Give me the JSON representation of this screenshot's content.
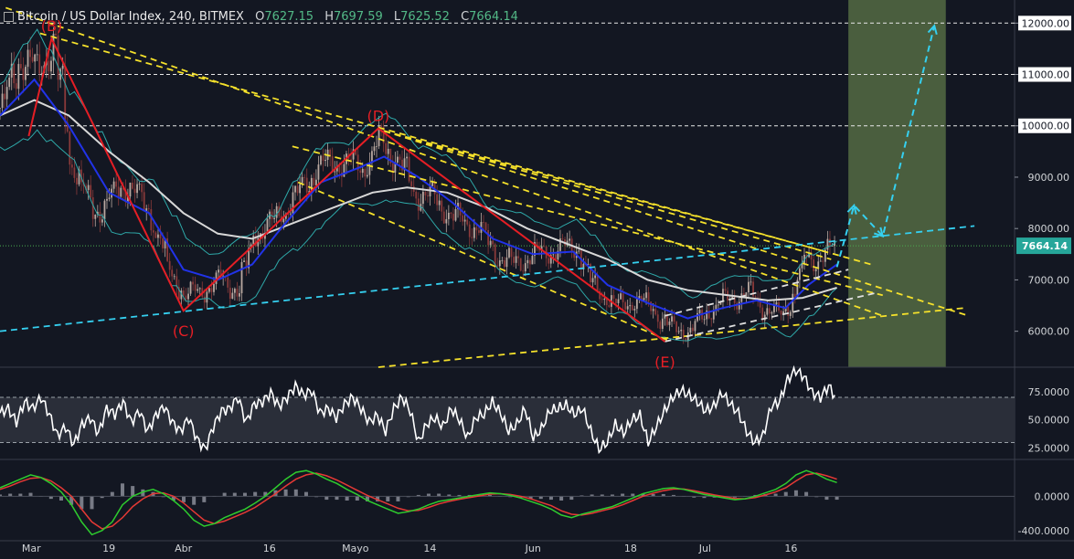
{
  "header": {
    "symbol": "Bitcoin / US Dollar Index",
    "interval": "240",
    "exchange": "BITMEX",
    "open_label": "O",
    "open": "7627.15",
    "high_label": "H",
    "high": "7697.59",
    "low_label": "L",
    "low": "7625.52",
    "close_label": "C",
    "close": "7664.14"
  },
  "colors": {
    "background": "#131722",
    "price_line": "#4caf50",
    "zigzag": "#e51e25",
    "ema_fast": "#2133e8",
    "sma_slow": "#d8d8d8",
    "bands": "#2ea8a8",
    "trend_yellow": "#f5e12b",
    "trend_cyan": "#35d0f0",
    "trend_white": "#e0e0e0",
    "green_zone": "#4a5e3e",
    "rsi_line": "#ffffff",
    "macd_line": "#2ecc2e",
    "signal_line": "#e53935",
    "histogram": "#787b86"
  },
  "chart_data": [
    {
      "type": "candlestick",
      "pane": "price",
      "ylim": [
        5300,
        12450
      ],
      "yticks": [
        6000,
        7000,
        8000,
        9000,
        10000,
        11000,
        12000
      ],
      "ytick_labels": [
        "6000.00",
        "7000.00",
        "8000.00",
        "9000.00",
        "10000.00",
        "11000.00",
        "12000.00"
      ],
      "last_price": 7664.14,
      "last_price_label": "7664.14",
      "x_labels": [
        "Mar",
        "19",
        "Abr",
        "16",
        "Mayo",
        "14",
        "Jun",
        "18",
        "Jul",
        "16"
      ],
      "wave_labels": [
        {
          "label": "(B)",
          "value": 11700
        },
        {
          "label": "(C)",
          "value": 6400
        },
        {
          "label": "(D)",
          "value": 9950
        },
        {
          "label": "(E)",
          "value": 5800
        }
      ],
      "zigzag": [
        {
          "date": "2018-03-05",
          "value": 9800
        },
        {
          "date": "2018-03-09",
          "value": 11700
        },
        {
          "date": "2018-04-01",
          "value": 6400
        },
        {
          "date": "2018-05-05",
          "value": 9950
        },
        {
          "date": "2018-06-24",
          "value": 5800
        }
      ],
      "close_path": [
        [
          "2018-02-28",
          10350
        ],
        [
          "2018-03-03",
          11300
        ],
        [
          "2018-03-06",
          11100
        ],
        [
          "2018-03-09",
          11600
        ],
        [
          "2018-03-12",
          9300
        ],
        [
          "2018-03-16",
          8300
        ],
        [
          "2018-03-19",
          8600
        ],
        [
          "2018-03-22",
          8900
        ],
        [
          "2018-03-26",
          8200
        ],
        [
          "2018-03-29",
          7200
        ],
        [
          "2018-04-01",
          6700
        ],
        [
          "2018-04-04",
          6800
        ],
        [
          "2018-04-07",
          7000
        ],
        [
          "2018-04-10",
          6800
        ],
        [
          "2018-04-13",
          7900
        ],
        [
          "2018-04-16",
          8100
        ],
        [
          "2018-04-20",
          8600
        ],
        [
          "2018-04-24",
          9200
        ],
        [
          "2018-04-28",
          9300
        ],
        [
          "2018-05-02",
          9200
        ],
        [
          "2018-05-05",
          9700
        ],
        [
          "2018-05-08",
          9300
        ],
        [
          "2018-05-11",
          8700
        ],
        [
          "2018-05-14",
          8600
        ],
        [
          "2018-05-18",
          8200
        ],
        [
          "2018-05-22",
          8000
        ],
        [
          "2018-05-25",
          7500
        ],
        [
          "2018-05-28",
          7300
        ],
        [
          "2018-06-01",
          7500
        ],
        [
          "2018-06-05",
          7600
        ],
        [
          "2018-06-08",
          7650
        ],
        [
          "2018-06-11",
          6900
        ],
        [
          "2018-06-15",
          6500
        ],
        [
          "2018-06-18",
          6600
        ],
        [
          "2018-06-21",
          6500
        ],
        [
          "2018-06-24",
          6100
        ],
        [
          "2018-06-28",
          6000
        ],
        [
          "2018-07-01",
          6400
        ],
        [
          "2018-07-04",
          6600
        ],
        [
          "2018-07-08",
          6750
        ],
        [
          "2018-07-11",
          6450
        ],
        [
          "2018-07-14",
          6300
        ],
        [
          "2018-07-16",
          6750
        ],
        [
          "2018-07-18",
          7400
        ],
        [
          "2018-07-20",
          7400
        ],
        [
          "2018-07-22",
          7550
        ],
        [
          "2018-07-24",
          7664
        ]
      ],
      "ema_fast": [
        [
          "2018-02-28",
          10200
        ],
        [
          "2018-03-06",
          10900
        ],
        [
          "2018-03-12",
          10000
        ],
        [
          "2018-03-19",
          8700
        ],
        [
          "2018-03-26",
          8300
        ],
        [
          "2018-04-01",
          7200
        ],
        [
          "2018-04-07",
          7000
        ],
        [
          "2018-04-13",
          7300
        ],
        [
          "2018-04-18",
          8000
        ],
        [
          "2018-04-25",
          8900
        ],
        [
          "2018-05-02",
          9200
        ],
        [
          "2018-05-06",
          9400
        ],
        [
          "2018-05-12",
          9000
        ],
        [
          "2018-05-18",
          8500
        ],
        [
          "2018-05-25",
          7800
        ],
        [
          "2018-06-01",
          7500
        ],
        [
          "2018-06-08",
          7550
        ],
        [
          "2018-06-14",
          6900
        ],
        [
          "2018-06-21",
          6550
        ],
        [
          "2018-06-28",
          6250
        ],
        [
          "2018-07-04",
          6450
        ],
        [
          "2018-07-10",
          6600
        ],
        [
          "2018-07-15",
          6450
        ],
        [
          "2018-07-19",
          6900
        ],
        [
          "2018-07-24",
          7300
        ]
      ],
      "sma_slow": [
        [
          "2018-02-28",
          10200
        ],
        [
          "2018-03-06",
          10500
        ],
        [
          "2018-03-12",
          10200
        ],
        [
          "2018-03-19",
          9500
        ],
        [
          "2018-03-26",
          8900
        ],
        [
          "2018-04-01",
          8300
        ],
        [
          "2018-04-07",
          7900
        ],
        [
          "2018-04-13",
          7800
        ],
        [
          "2018-04-20",
          8100
        ],
        [
          "2018-04-27",
          8400
        ],
        [
          "2018-05-04",
          8700
        ],
        [
          "2018-05-10",
          8800
        ],
        [
          "2018-05-17",
          8700
        ],
        [
          "2018-05-24",
          8400
        ],
        [
          "2018-05-31",
          8000
        ],
        [
          "2018-06-07",
          7700
        ],
        [
          "2018-06-14",
          7400
        ],
        [
          "2018-06-21",
          7000
        ],
        [
          "2018-06-28",
          6800
        ],
        [
          "2018-07-05",
          6700
        ],
        [
          "2018-07-12",
          6600
        ],
        [
          "2018-07-18",
          6650
        ],
        [
          "2018-07-24",
          6850
        ]
      ],
      "trendlines": [
        {
          "color": "yellow",
          "from": [
            "2018-03-07",
            11800
          ],
          "to": [
            "2018-07-30",
            7300
          ]
        },
        {
          "color": "yellow",
          "from": [
            "2018-03-01",
            12300
          ],
          "to": [
            "2018-08-01",
            6300
          ]
        },
        {
          "color": "yellow",
          "from": [
            "2018-04-20",
            9600
          ],
          "to": [
            "2018-08-01",
            6700
          ]
        },
        {
          "color": "yellow",
          "from": [
            "2018-05-06",
            9900
          ],
          "to": [
            "2018-07-23",
            7400
          ]
        },
        {
          "color": "yellow",
          "from": [
            "2018-05-06",
            9900
          ],
          "to": [
            "2018-08-16",
            6300
          ]
        },
        {
          "color": "yellow",
          "from": [
            "2018-05-06",
            9900
          ],
          "to": [
            "2018-07-22",
            7550
          ]
        },
        {
          "color": "yellow",
          "from": [
            "2018-04-21",
            8900
          ],
          "to": [
            "2018-06-25",
            5800
          ]
        },
        {
          "color": "yellow",
          "from": [
            "2018-05-05",
            5300
          ],
          "to": [
            "2018-08-15",
            6450
          ]
        },
        {
          "color": "cyan",
          "from": [
            "2018-02-28",
            6000
          ],
          "to": [
            "2018-08-17",
            8050
          ]
        },
        {
          "color": "white",
          "from": [
            "2018-06-24",
            5800
          ],
          "to": [
            "2018-07-31",
            6750
          ]
        },
        {
          "color": "white",
          "from": [
            "2018-06-24",
            6300
          ],
          "to": [
            "2018-07-26",
            7200
          ]
        }
      ],
      "projection": [
        [
          "2018-07-24",
          7250
        ],
        [
          "2018-07-27",
          8450
        ],
        [
          "2018-08-01",
          7850
        ],
        [
          "2018-08-10",
          11950
        ]
      ],
      "green_zone": {
        "from_date": "2018-07-26",
        "to_date": "2018-08-12"
      }
    },
    {
      "type": "line",
      "pane": "rsi",
      "ylim": [
        15,
        95
      ],
      "yticks": [
        25,
        50,
        75
      ],
      "ytick_labels": [
        "25.0000",
        "50.0000",
        "75.0000"
      ],
      "levels": [
        70,
        30
      ],
      "series": [
        {
          "values": [
            56,
            60,
            48,
            66,
            60,
            70,
            55,
            36,
            44,
            28,
            46,
            52,
            38,
            60,
            55,
            66,
            48,
            58,
            40,
            54,
            62,
            48,
            40,
            52,
            33,
            24,
            44,
            58,
            60,
            70,
            48,
            64,
            66,
            74,
            62,
            70,
            80,
            72,
            76,
            56,
            60,
            52,
            64,
            70,
            60,
            48,
            54,
            40,
            60,
            70,
            58,
            30,
            46,
            52,
            44,
            60,
            50,
            34,
            52,
            55,
            66,
            56,
            40,
            46,
            60,
            34,
            42,
            58,
            60,
            63,
            55,
            60,
            40,
            24,
            30,
            46,
            38,
            50,
            54,
            30,
            44,
            58,
            70,
            76,
            72,
            66,
            58,
            62,
            74,
            64,
            56,
            40,
            30,
            36,
            62,
            66,
            86,
            94,
            88,
            74,
            70,
            80,
            68
          ]
        }
      ]
    },
    {
      "type": "line",
      "pane": "macd",
      "ylim": [
        -520,
        420
      ],
      "yticks": [
        -400,
        0
      ],
      "ytick_labels": [
        "-400.0000",
        "0.0000"
      ],
      "series": [
        {
          "values": [
            100,
            150,
            200,
            250,
            220,
            150,
            50,
            -100,
            -300,
            -450,
            -400,
            -300,
            -100,
            0,
            50,
            80,
            30,
            -50,
            -150,
            -280,
            -350,
            -320,
            -250,
            -200,
            -150,
            -80,
            0,
            100,
            200,
            280,
            300,
            260,
            200,
            150,
            80,
            20,
            -50,
            -100,
            -150,
            -200,
            -180,
            -150,
            -100,
            -60,
            -40,
            -20,
            0,
            20,
            40,
            30,
            10,
            -20,
            -60,
            -100,
            -150,
            -220,
            -250,
            -210,
            -180,
            -150,
            -120,
            -70,
            -20,
            30,
            60,
            90,
            100,
            80,
            50,
            20,
            0,
            -20,
            -40,
            -30,
            0,
            40,
            80,
            150,
            250,
            300,
            260,
            200,
            160
          ]
        },
        {
          "values": [
            80,
            120,
            170,
            210,
            220,
            180,
            100,
            0,
            -150,
            -300,
            -380,
            -350,
            -250,
            -120,
            -30,
            30,
            40,
            0,
            -80,
            -180,
            -280,
            -320,
            -290,
            -240,
            -190,
            -130,
            -50,
            30,
            120,
            200,
            250,
            270,
            240,
            190,
            130,
            70,
            10,
            -40,
            -90,
            -140,
            -170,
            -165,
            -130,
            -90,
            -60,
            -35,
            -15,
            5,
            25,
            30,
            20,
            0,
            -30,
            -70,
            -110,
            -170,
            -210,
            -220,
            -200,
            -170,
            -140,
            -100,
            -50,
            0,
            35,
            65,
            85,
            85,
            65,
            40,
            15,
            -5,
            -25,
            -30,
            -15,
            15,
            50,
            100,
            180,
            250,
            270,
            240,
            200
          ]
        }
      ],
      "histogram": [
        20,
        30,
        30,
        40,
        0,
        -30,
        -50,
        -100,
        -150,
        -150,
        -20,
        50,
        150,
        120,
        80,
        50,
        -10,
        -50,
        -70,
        -100,
        -70,
        0,
        40,
        40,
        40,
        50,
        50,
        70,
        80,
        80,
        50,
        -10,
        -40,
        -40,
        -50,
        -50,
        -60,
        -60,
        -60,
        -60,
        -10,
        15,
        30,
        30,
        20,
        15,
        15,
        15,
        15,
        0,
        -10,
        -20,
        -30,
        -30,
        -40,
        -50,
        -40,
        10,
        20,
        20,
        20,
        30,
        30,
        30,
        25,
        25,
        15,
        -5,
        -15,
        -20,
        -15,
        -15,
        -15,
        0,
        15,
        25,
        30,
        50,
        70,
        50,
        -10,
        -40,
        -40
      ]
    }
  ],
  "generator": {
    "wiggles": 6
  }
}
